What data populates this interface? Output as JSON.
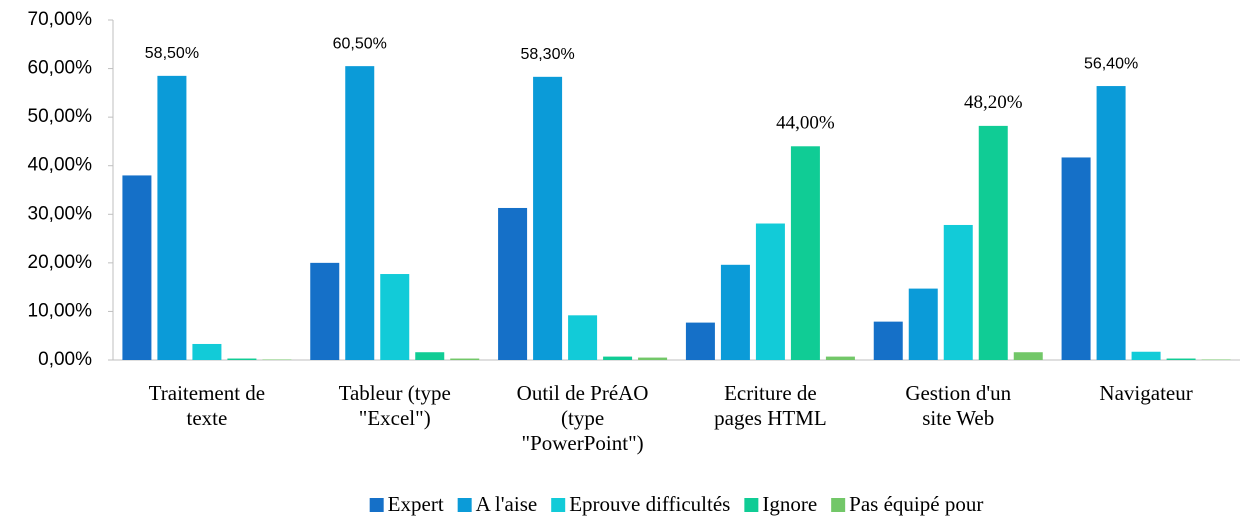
{
  "chart_data": {
    "type": "bar",
    "categories": [
      "Traitement de texte",
      "Tableur (type \"Excel\")",
      "Outil de PréAO (type \"PowerPoint\")",
      "Ecriture de pages HTML",
      "Gestion d'un site Web",
      "Navigateur"
    ],
    "series": [
      {
        "name": "Expert",
        "color": "#1570c8",
        "values": [
          38.0,
          20.0,
          31.3,
          7.7,
          7.9,
          41.7
        ]
      },
      {
        "name": "A l'aise",
        "color": "#0b9bd8",
        "values": [
          58.5,
          60.5,
          58.3,
          19.6,
          14.7,
          56.4
        ],
        "value_labels": [
          "58,50%",
          "60,50%",
          "58,30%",
          null,
          null,
          "56,40%"
        ]
      },
      {
        "name": "Eprouve difficultés",
        "color": "#12cbd8",
        "values": [
          3.3,
          17.7,
          9.2,
          28.1,
          27.8,
          1.7
        ]
      },
      {
        "name": "Ignore",
        "color": "#10cc95",
        "values": [
          0.3,
          1.6,
          0.7,
          44.0,
          48.2,
          0.3
        ],
        "value_labels": [
          null,
          null,
          null,
          "44,00%",
          "48,20%",
          null
        ]
      },
      {
        "name": "Pas équipé pour",
        "color": "#72c768",
        "values": [
          0.1,
          0.3,
          0.5,
          0.7,
          1.6,
          0.1
        ]
      }
    ],
    "ylim": [
      0,
      70
    ],
    "yticks": [
      {
        "value": 0,
        "label": "0,00%"
      },
      {
        "value": 10,
        "label": "10,00%"
      },
      {
        "value": 20,
        "label": "20,00%"
      },
      {
        "value": 30,
        "label": "30,00%"
      },
      {
        "value": 40,
        "label": "40,00%"
      },
      {
        "value": 50,
        "label": "50,00%"
      },
      {
        "value": 60,
        "label": "60,00%"
      },
      {
        "value": 70,
        "label": "70,00%"
      }
    ],
    "legend": "bottom"
  }
}
